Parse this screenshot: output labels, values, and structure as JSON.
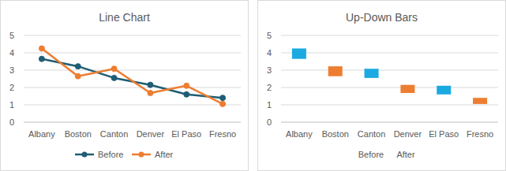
{
  "chart_data": [
    {
      "type": "line",
      "title": "Line Chart",
      "categories": [
        "Albany",
        "Boston",
        "Canton",
        "Denver",
        "El Paso",
        "Fresno"
      ],
      "series": [
        {
          "name": "Before",
          "color": "#1f5d74",
          "marker": "circle",
          "line_style": "solid",
          "values": [
            3.65,
            3.22,
            2.55,
            2.15,
            1.6,
            1.4
          ]
        },
        {
          "name": "After",
          "color": "#ed7d31",
          "marker": "circle",
          "line_style": "solid",
          "values": [
            4.25,
            2.65,
            3.08,
            1.68,
            2.1,
            1.05
          ]
        }
      ],
      "ylim": [
        0,
        5
      ],
      "yticks": [
        0,
        1,
        2,
        3,
        4,
        5
      ],
      "grid": true,
      "legend": "bottom"
    },
    {
      "type": "updown",
      "title": "Up-Down Bars",
      "categories": [
        "Albany",
        "Boston",
        "Canton",
        "Denver",
        "El Paso",
        "Fresno"
      ],
      "series": [
        {
          "name": "Before",
          "values": [
            3.65,
            3.22,
            2.55,
            2.15,
            1.6,
            1.4
          ]
        },
        {
          "name": "After",
          "values": [
            4.25,
            2.65,
            3.08,
            1.68,
            2.1,
            1.05
          ]
        }
      ],
      "colors": [
        "#1ba9e1",
        "#ed7d31",
        "#1ba9e1",
        "#ed7d31",
        "#1ba9e1",
        "#ed7d31"
      ],
      "ylim": [
        0,
        5
      ],
      "yticks": [
        0,
        1,
        2,
        3,
        4,
        5
      ],
      "grid": true,
      "legend": "bottom"
    }
  ]
}
